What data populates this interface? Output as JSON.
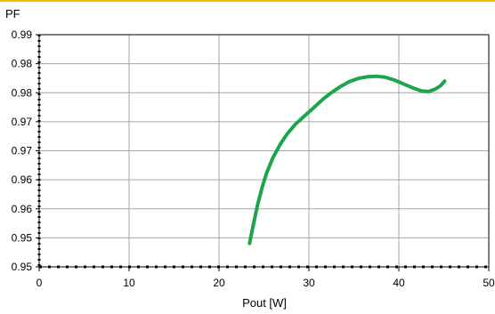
{
  "chart_data": {
    "type": "line",
    "title": "",
    "ylabel": "PF",
    "xlabel": "Pout [W]",
    "xlim": [
      0,
      50
    ],
    "ylim": [
      0.9475,
      0.99
    ],
    "grid": true,
    "legend": "none",
    "x_ticks": [
      "0",
      "10",
      "20",
      "30",
      "40",
      "50"
    ],
    "y_ticks": [
      "0.99",
      "0.98",
      "0.98",
      "0.97",
      "0.97",
      "0.96",
      "0.96",
      "0.95",
      "0.95"
    ],
    "colors": {
      "line": "#1aa64a",
      "top_rule": "#f2c200",
      "grid": "#a6a6a6"
    },
    "series": [
      {
        "x": [
          23.4,
          23.8,
          24.3,
          24.8,
          25.3,
          26.0,
          26.8,
          27.6,
          28.5,
          29.5,
          30.5,
          31.5,
          32.5,
          33.5,
          34.5,
          35.5,
          36.5,
          37.5,
          38.5,
          39.5,
          40.5,
          41.5,
          42.5,
          43.3,
          44.0,
          44.6,
          45.1
        ],
        "y": [
          0.9518,
          0.9551,
          0.9589,
          0.9621,
          0.9647,
          0.9675,
          0.9699,
          0.9719,
          0.9736,
          0.9751,
          0.9766,
          0.9781,
          0.9794,
          0.9805,
          0.9814,
          0.982,
          0.9823,
          0.9824,
          0.9822,
          0.9817,
          0.981,
          0.9803,
          0.9797,
          0.9796,
          0.98,
          0.9806,
          0.9815
        ]
      }
    ]
  }
}
